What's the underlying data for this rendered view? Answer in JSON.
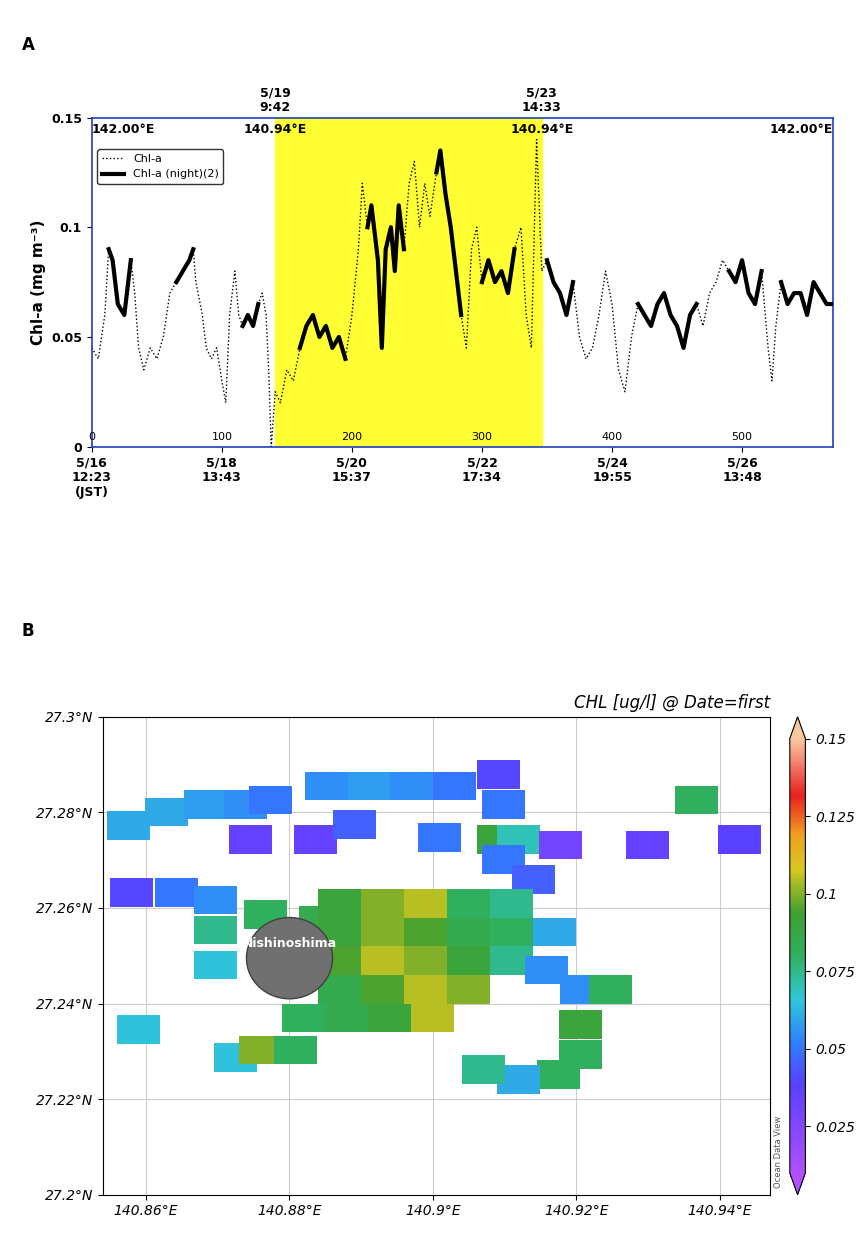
{
  "chart_data": [
    {
      "type": "line",
      "panel": "A",
      "y_label": "Chl-a (mg m⁻³)",
      "xlim": [
        0,
        570
      ],
      "ylim": [
        0,
        0.15
      ],
      "yticks": [
        0,
        0.05,
        0.1,
        0.15
      ],
      "xticks": [
        {
          "value": 0,
          "label": "5/16\n12:23\n(JST)"
        },
        {
          "value": 100,
          "label": "5/18\n13:43"
        },
        {
          "value": 200,
          "label": "5/20\n15:37"
        },
        {
          "value": 300,
          "label": "5/22\n17:34"
        },
        {
          "value": 400,
          "label": "5/24\n19:55"
        },
        {
          "value": 500,
          "label": "5/26\n13:48"
        }
      ],
      "index_labels": [
        0,
        100,
        200,
        300,
        400,
        500
      ],
      "highlight": {
        "x": [
          141,
          346
        ],
        "labels": [
          "5/19\n9:42",
          "5/23\n14:33"
        ],
        "color": "#ffff33"
      },
      "annotations": [
        {
          "x": 0,
          "text": "142.00°E"
        },
        {
          "x": 141,
          "text": "140.94°E"
        },
        {
          "x": 346,
          "text": "140.94°E"
        },
        {
          "x": 570,
          "text": "142.00°E"
        }
      ],
      "legend": "upper left",
      "series": [
        {
          "name": "Chl-a",
          "color": "#000000",
          "line_style": "dotted",
          "x": [
            0,
            5,
            10,
            13,
            16,
            20,
            25,
            28,
            30,
            33,
            36,
            40,
            45,
            50,
            55,
            60,
            65,
            70,
            75,
            78,
            80,
            85,
            88,
            92,
            96,
            100,
            103,
            106,
            110,
            113,
            116,
            120,
            124,
            128,
            131,
            134,
            136,
            138,
            141,
            145,
            150,
            155,
            160,
            165,
            170,
            175,
            180,
            185,
            190,
            195,
            200,
            205,
            208,
            212,
            215,
            220,
            223,
            226,
            230,
            233,
            236,
            240,
            244,
            248,
            252,
            256,
            260,
            265,
            268,
            272,
            276,
            280,
            284,
            288,
            292,
            296,
            300,
            305,
            310,
            315,
            320,
            325,
            330,
            334,
            338,
            342,
            346,
            350,
            355,
            360,
            365,
            370,
            375,
            380,
            385,
            390,
            395,
            400,
            405,
            410,
            415,
            420,
            425,
            430,
            435,
            440,
            445,
            450,
            455,
            460,
            465,
            470,
            475,
            480,
            485,
            490,
            495,
            500,
            505,
            510,
            515,
            520,
            523,
            526,
            530,
            535,
            540,
            545,
            550,
            555,
            560,
            565,
            570
          ],
          "values": [
            0.045,
            0.04,
            0.06,
            0.09,
            0.085,
            0.065,
            0.06,
            0.075,
            0.085,
            0.07,
            0.045,
            0.035,
            0.045,
            0.04,
            0.05,
            0.07,
            0.075,
            0.08,
            0.085,
            0.09,
            0.075,
            0.06,
            0.045,
            0.04,
            0.045,
            0.03,
            0.02,
            0.06,
            0.08,
            0.06,
            0.055,
            0.06,
            0.055,
            0.065,
            0.07,
            0.06,
            0.035,
            0.0,
            0.025,
            0.02,
            0.035,
            0.03,
            0.045,
            0.055,
            0.06,
            0.05,
            0.055,
            0.045,
            0.05,
            0.04,
            0.06,
            0.09,
            0.12,
            0.1,
            0.11,
            0.085,
            0.045,
            0.09,
            0.1,
            0.08,
            0.11,
            0.09,
            0.12,
            0.13,
            0.1,
            0.12,
            0.105,
            0.125,
            0.135,
            0.115,
            0.1,
            0.08,
            0.06,
            0.045,
            0.09,
            0.1,
            0.075,
            0.085,
            0.075,
            0.08,
            0.07,
            0.09,
            0.1,
            0.06,
            0.045,
            0.14,
            0.08,
            0.085,
            0.075,
            0.07,
            0.06,
            0.075,
            0.05,
            0.04,
            0.045,
            0.06,
            0.08,
            0.065,
            0.035,
            0.025,
            0.05,
            0.065,
            0.06,
            0.055,
            0.065,
            0.07,
            0.06,
            0.055,
            0.045,
            0.06,
            0.065,
            0.055,
            0.07,
            0.075,
            0.085,
            0.08,
            0.075,
            0.085,
            0.07,
            0.065,
            0.08,
            0.045,
            0.03,
            0.055,
            0.075,
            0.065,
            0.07,
            0.07,
            0.06,
            0.075,
            0.07,
            0.065,
            0.065
          ]
        },
        {
          "name": "Chl-a (night)(2)",
          "color": "#000000",
          "line_style": "solid",
          "x": [
            13,
            16,
            20,
            25,
            28,
            30,
            45,
            65,
            70,
            75,
            78,
            100,
            116,
            120,
            124,
            128,
            140,
            160,
            165,
            170,
            175,
            180,
            185,
            190,
            195,
            205,
            212,
            215,
            220,
            223,
            226,
            230,
            233,
            236,
            240,
            250,
            265,
            268,
            272,
            276,
            280,
            284,
            292,
            300,
            305,
            310,
            315,
            320,
            325,
            340,
            350,
            355,
            360,
            365,
            370,
            400,
            420,
            425,
            430,
            435,
            440,
            445,
            450,
            455,
            460,
            465,
            480,
            490,
            495,
            500,
            505,
            510,
            515,
            525,
            530,
            535,
            540,
            545,
            550,
            555,
            560,
            565,
            570
          ],
          "values": [
            0.09,
            0.085,
            0.065,
            0.06,
            0.075,
            0.085,
            null,
            0.075,
            0.08,
            0.085,
            0.09,
            null,
            0.055,
            0.06,
            0.055,
            0.065,
            null,
            0.045,
            0.055,
            0.06,
            0.05,
            0.055,
            0.045,
            0.05,
            0.04,
            null,
            0.1,
            0.11,
            0.085,
            0.045,
            0.09,
            0.1,
            0.08,
            0.11,
            0.09,
            null,
            0.125,
            0.135,
            0.115,
            0.1,
            0.08,
            0.06,
            null,
            0.075,
            0.085,
            0.075,
            0.08,
            0.07,
            0.09,
            null,
            0.085,
            0.075,
            0.07,
            0.06,
            0.075,
            null,
            0.065,
            0.06,
            0.055,
            0.065,
            0.07,
            0.06,
            0.055,
            0.045,
            0.06,
            0.065,
            null,
            0.08,
            0.075,
            0.085,
            0.07,
            0.065,
            0.08,
            null,
            0.075,
            0.065,
            0.07,
            0.07,
            0.06,
            0.075,
            0.07,
            0.065,
            0.065
          ]
        }
      ]
    },
    {
      "type": "heatmap",
      "panel": "B",
      "title": "CHL [ug/l] @ Date=first",
      "xlim": [
        140.854,
        140.947
      ],
      "ylim": [
        27.2,
        27.3
      ],
      "xticks": [
        {
          "value": 140.86,
          "label": "140.86°E"
        },
        {
          "value": 140.88,
          "label": "140.88°E"
        },
        {
          "value": 140.9,
          "label": "140.9°E"
        },
        {
          "value": 140.92,
          "label": "140.92°E"
        },
        {
          "value": 140.94,
          "label": "140.94°E"
        }
      ],
      "yticks": [
        {
          "value": 27.2,
          "label": "27.2°N"
        },
        {
          "value": 27.22,
          "label": "27.22°N"
        },
        {
          "value": 27.24,
          "label": "27.24°N"
        },
        {
          "value": 27.26,
          "label": "27.26°N"
        },
        {
          "value": 27.28,
          "label": "27.28°N"
        },
        {
          "value": 27.3,
          "label": "27.3°N"
        }
      ],
      "grid": true,
      "cell_size": [
        0.006,
        0.006
      ],
      "colorbar_range": [
        0.01,
        0.15
      ],
      "colorbar_ticks": [
        0.025,
        0.05,
        0.075,
        0.1,
        0.125,
        0.15
      ],
      "island": {
        "name": "Nishinoshima",
        "lon": 140.88,
        "lat": 27.2495
      },
      "credit": "Ocean Data View",
      "cells": [
        [
          140.8852,
          27.2855,
          0.055
        ],
        [
          140.8912,
          27.2855,
          0.058
        ],
        [
          140.897,
          27.2855,
          0.055
        ],
        [
          140.903,
          27.2855,
          0.05
        ],
        [
          140.9092,
          27.288,
          0.04
        ],
        [
          140.9099,
          27.2816,
          0.05
        ],
        [
          140.8575,
          27.2772,
          0.06
        ],
        [
          140.8628,
          27.2801,
          0.06
        ],
        [
          140.8683,
          27.2816,
          0.058
        ],
        [
          140.8739,
          27.2816,
          0.055
        ],
        [
          140.8773,
          27.2826,
          0.05
        ],
        [
          140.8746,
          27.2743,
          0.035
        ],
        [
          140.8836,
          27.2743,
          0.035
        ],
        [
          140.8891,
          27.2774,
          0.045
        ],
        [
          140.9009,
          27.2747,
          0.05
        ],
        [
          140.9092,
          27.2743,
          0.09
        ],
        [
          140.912,
          27.2743,
          0.07
        ],
        [
          140.9178,
          27.2732,
          0.03
        ],
        [
          140.93,
          27.2732,
          0.035
        ],
        [
          140.9428,
          27.2743,
          0.038
        ],
        [
          140.9367,
          27.2826,
          0.08
        ],
        [
          140.9099,
          27.2701,
          0.05
        ],
        [
          140.9141,
          27.2659,
          0.045
        ],
        [
          140.8579,
          27.2632,
          0.04
        ],
        [
          140.8642,
          27.2632,
          0.05
        ],
        [
          140.8697,
          27.2617,
          0.055
        ],
        [
          140.8697,
          27.2554,
          0.075
        ],
        [
          140.8766,
          27.2586,
          0.08
        ],
        [
          140.8843,
          27.2575,
          0.085
        ],
        [
          140.8697,
          27.2481,
          0.065
        ],
        [
          140.859,
          27.2345,
          0.065
        ],
        [
          140.8725,
          27.2287,
          0.065
        ],
        [
          140.8759,
          27.2303,
          0.1
        ],
        [
          140.8808,
          27.2303,
          0.08
        ],
        [
          140.887,
          27.261,
          0.09
        ],
        [
          140.893,
          27.261,
          0.1
        ],
        [
          140.899,
          27.261,
          0.105
        ],
        [
          140.905,
          27.261,
          0.08
        ],
        [
          140.911,
          27.261,
          0.075
        ],
        [
          140.887,
          27.255,
          0.09
        ],
        [
          140.893,
          27.255,
          0.1
        ],
        [
          140.899,
          27.255,
          0.095
        ],
        [
          140.905,
          27.255,
          0.085
        ],
        [
          140.911,
          27.255,
          0.08
        ],
        [
          140.917,
          27.255,
          0.06
        ],
        [
          140.887,
          27.249,
          0.095
        ],
        [
          140.893,
          27.249,
          0.105
        ],
        [
          140.899,
          27.249,
          0.1
        ],
        [
          140.905,
          27.249,
          0.09
        ],
        [
          140.911,
          27.249,
          0.075
        ],
        [
          140.887,
          27.243,
          0.085
        ],
        [
          140.893,
          27.243,
          0.095
        ],
        [
          140.899,
          27.243,
          0.105
        ],
        [
          140.905,
          27.243,
          0.1
        ],
        [
          140.882,
          27.237,
          0.08
        ],
        [
          140.888,
          27.237,
          0.085
        ],
        [
          140.894,
          27.237,
          0.09
        ],
        [
          140.9,
          27.237,
          0.105
        ],
        [
          140.9159,
          27.247,
          0.055
        ],
        [
          140.9207,
          27.2429,
          0.055
        ],
        [
          140.9248,
          27.2429,
          0.08
        ],
        [
          140.9206,
          27.2356,
          0.09
        ],
        [
          140.9206,
          27.2293,
          0.08
        ],
        [
          140.9175,
          27.2251,
          0.08
        ],
        [
          140.912,
          27.2241,
          0.06
        ],
        [
          140.9071,
          27.2262,
          0.075
        ]
      ]
    }
  ],
  "panel_labels": [
    "A",
    "B"
  ]
}
